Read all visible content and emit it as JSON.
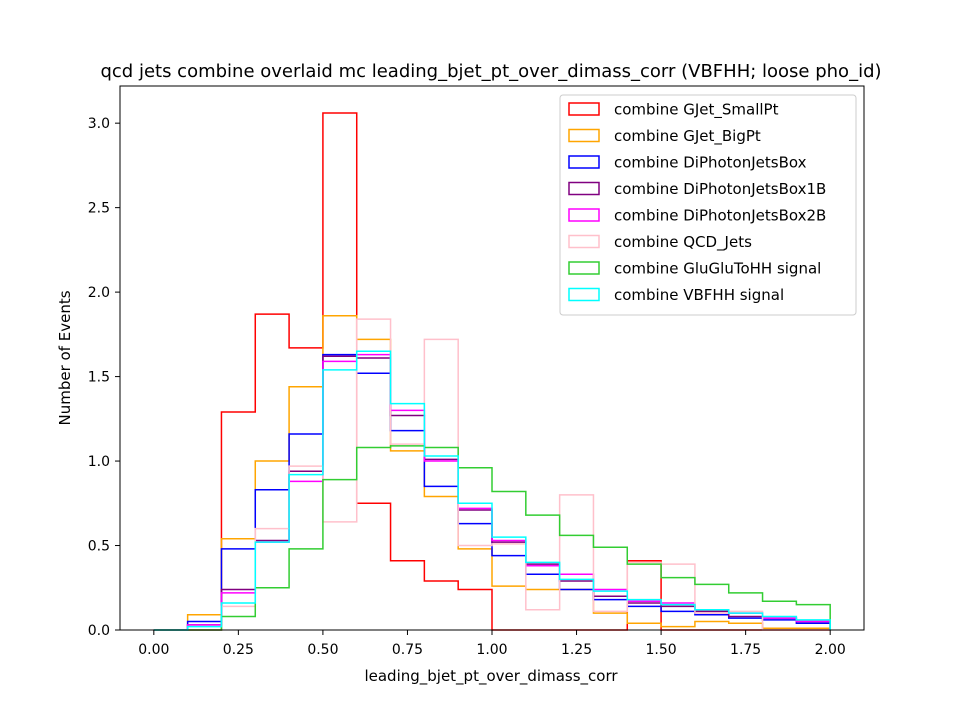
{
  "chart_data": {
    "type": "histogram-step",
    "title": "qcd jets combine overlaid mc leading_bjet_pt_over_dimass_corr (VBFHH; loose pho_id)",
    "xlabel": "leading_bjet_pt_over_dimass_corr",
    "ylabel": "Number of Events",
    "xlim": [
      -0.1,
      2.1
    ],
    "ylim": [
      0,
      3.22
    ],
    "xticks": [
      0.0,
      0.25,
      0.5,
      0.75,
      1.0,
      1.25,
      1.5,
      1.75,
      2.0
    ],
    "xtick_labels": [
      "0.00",
      "0.25",
      "0.50",
      "0.75",
      "1.00",
      "1.25",
      "1.50",
      "1.75",
      "2.00"
    ],
    "yticks": [
      0.0,
      0.5,
      1.0,
      1.5,
      2.0,
      2.5,
      3.0
    ],
    "ytick_labels": [
      "0.0",
      "0.5",
      "1.0",
      "1.5",
      "2.0",
      "2.5",
      "3.0"
    ],
    "legend_position": "top-right",
    "bin_edges": [
      0.0,
      0.1,
      0.2,
      0.3,
      0.4,
      0.5,
      0.6,
      0.7,
      0.8,
      0.9,
      1.0,
      1.1,
      1.2,
      1.3,
      1.4,
      1.5,
      1.6,
      1.7,
      1.8,
      1.9,
      2.0
    ],
    "series": [
      {
        "name": "combine GJet_SmallPt",
        "color": "#ff0000",
        "values": [
          0.0,
          0.0,
          1.29,
          1.87,
          1.67,
          3.06,
          0.75,
          0.41,
          0.29,
          0.24,
          0.0,
          0.0,
          0.0,
          0.0,
          0.41,
          0.0,
          0.0,
          0.0,
          0.0,
          0.0
        ]
      },
      {
        "name": "combine GJet_BigPt",
        "color": "#ffa500",
        "values": [
          0.0,
          0.09,
          0.54,
          1.0,
          1.44,
          1.86,
          1.72,
          1.06,
          0.79,
          0.48,
          0.26,
          0.24,
          0.24,
          0.1,
          0.04,
          0.02,
          0.05,
          0.04,
          0.01,
          0.01
        ]
      },
      {
        "name": "combine DiPhotonJetsBox",
        "color": "#0000ff",
        "values": [
          0.0,
          0.05,
          0.48,
          0.83,
          1.16,
          1.63,
          1.52,
          1.18,
          0.85,
          0.63,
          0.44,
          0.33,
          0.24,
          0.18,
          0.14,
          0.11,
          0.09,
          0.07,
          0.06,
          0.04
        ]
      },
      {
        "name": "combine DiPhotonJetsBox1B",
        "color": "#800080",
        "values": [
          0.0,
          0.03,
          0.24,
          0.53,
          0.94,
          1.62,
          1.61,
          1.27,
          1.01,
          0.71,
          0.52,
          0.39,
          0.29,
          0.2,
          0.16,
          0.14,
          0.11,
          0.08,
          0.07,
          0.05
        ]
      },
      {
        "name": "combine DiPhotonJetsBox2B",
        "color": "#ff00ff",
        "values": [
          0.0,
          0.03,
          0.22,
          0.52,
          0.88,
          1.59,
          1.63,
          1.3,
          1.0,
          0.72,
          0.53,
          0.38,
          0.33,
          0.24,
          0.17,
          0.16,
          0.12,
          0.1,
          0.07,
          0.05
        ]
      },
      {
        "name": "combine QCD_Jets",
        "color": "#ffc0cb",
        "values": [
          0.0,
          0.0,
          0.14,
          0.6,
          0.97,
          0.64,
          1.84,
          1.1,
          1.72,
          0.5,
          0.51,
          0.12,
          0.8,
          0.11,
          0.4,
          0.39,
          0.1,
          0.11,
          0.0,
          0.0
        ]
      },
      {
        "name": "combine GluGluToHH signal",
        "color": "#32cd32",
        "values": [
          0.0,
          0.0,
          0.08,
          0.25,
          0.48,
          0.89,
          1.08,
          1.09,
          1.08,
          0.96,
          0.82,
          0.68,
          0.56,
          0.49,
          0.39,
          0.31,
          0.27,
          0.22,
          0.17,
          0.15
        ]
      },
      {
        "name": "combine VBFHH signal",
        "color": "#00ffff",
        "values": [
          0.0,
          0.02,
          0.16,
          0.52,
          0.92,
          1.54,
          1.65,
          1.34,
          1.03,
          0.75,
          0.55,
          0.4,
          0.3,
          0.23,
          0.18,
          0.15,
          0.12,
          0.1,
          0.08,
          0.06
        ]
      }
    ]
  }
}
